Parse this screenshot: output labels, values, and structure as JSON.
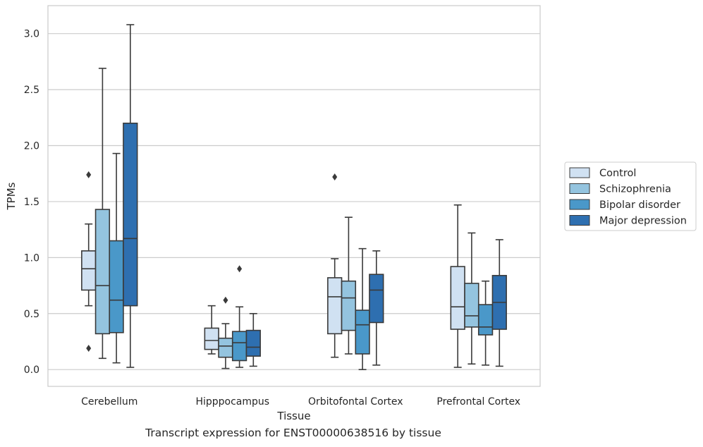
{
  "caption": "Transcript expression for ENST00000638516 by tissue",
  "chart_data": {
    "type": "box",
    "xlabel": "Tissue",
    "ylabel": "TPMs",
    "ylim": [
      -0.15,
      3.25
    ],
    "yticks": [
      "0.0",
      "0.5",
      "1.0",
      "1.5",
      "2.0",
      "2.5",
      "3.0"
    ],
    "grid": "horizontal",
    "legend_position": "right",
    "categories": [
      "Cerebellum",
      "Hipppocampus",
      "Orbitofontal Cortex",
      "Prefrontal Cortex"
    ],
    "series": [
      {
        "name": "Control",
        "color": "#d0e1f2",
        "boxes": [
          {
            "whislo": 0.57,
            "q1": 0.71,
            "med": 0.9,
            "q3": 1.06,
            "whishi": 1.3,
            "fliers": [
              1.74,
              0.19
            ]
          },
          {
            "whislo": 0.14,
            "q1": 0.18,
            "med": 0.26,
            "q3": 0.37,
            "whishi": 0.57,
            "fliers": []
          },
          {
            "whislo": 0.11,
            "q1": 0.32,
            "med": 0.65,
            "q3": 0.82,
            "whishi": 0.99,
            "fliers": [
              1.72
            ]
          },
          {
            "whislo": 0.02,
            "q1": 0.36,
            "med": 0.56,
            "q3": 0.92,
            "whishi": 1.47,
            "fliers": []
          }
        ]
      },
      {
        "name": "Schizophrenia",
        "color": "#94c4df",
        "boxes": [
          {
            "whislo": 0.1,
            "q1": 0.32,
            "med": 0.75,
            "q3": 1.43,
            "whishi": 2.69,
            "fliers": []
          },
          {
            "whislo": 0.01,
            "q1": 0.11,
            "med": 0.21,
            "q3": 0.28,
            "whishi": 0.41,
            "fliers": [
              0.62
            ]
          },
          {
            "whislo": 0.14,
            "q1": 0.35,
            "med": 0.64,
            "q3": 0.79,
            "whishi": 1.36,
            "fliers": []
          },
          {
            "whislo": 0.05,
            "q1": 0.38,
            "med": 0.48,
            "q3": 0.77,
            "whishi": 1.22,
            "fliers": []
          }
        ]
      },
      {
        "name": "Bipolar disorder",
        "color": "#4a98c9",
        "boxes": [
          {
            "whislo": 0.06,
            "q1": 0.33,
            "med": 0.62,
            "q3": 1.15,
            "whishi": 1.93,
            "fliers": []
          },
          {
            "whislo": 0.02,
            "q1": 0.08,
            "med": 0.24,
            "q3": 0.34,
            "whishi": 0.56,
            "fliers": [
              0.9
            ]
          },
          {
            "whislo": 0.0,
            "q1": 0.14,
            "med": 0.4,
            "q3": 0.53,
            "whishi": 1.08,
            "fliers": []
          },
          {
            "whislo": 0.04,
            "q1": 0.31,
            "med": 0.38,
            "q3": 0.58,
            "whishi": 0.79,
            "fliers": []
          }
        ]
      },
      {
        "name": "Major depression",
        "color": "#2e6fb0",
        "boxes": [
          {
            "whislo": 0.02,
            "q1": 0.57,
            "med": 1.17,
            "q3": 2.2,
            "whishi": 3.08,
            "fliers": []
          },
          {
            "whislo": 0.03,
            "q1": 0.12,
            "med": 0.2,
            "q3": 0.35,
            "whishi": 0.5,
            "fliers": []
          },
          {
            "whislo": 0.04,
            "q1": 0.42,
            "med": 0.71,
            "q3": 0.85,
            "whishi": 1.06,
            "fliers": []
          },
          {
            "whislo": 0.03,
            "q1": 0.36,
            "med": 0.6,
            "q3": 0.84,
            "whishi": 1.16,
            "fliers": []
          }
        ]
      }
    ]
  }
}
